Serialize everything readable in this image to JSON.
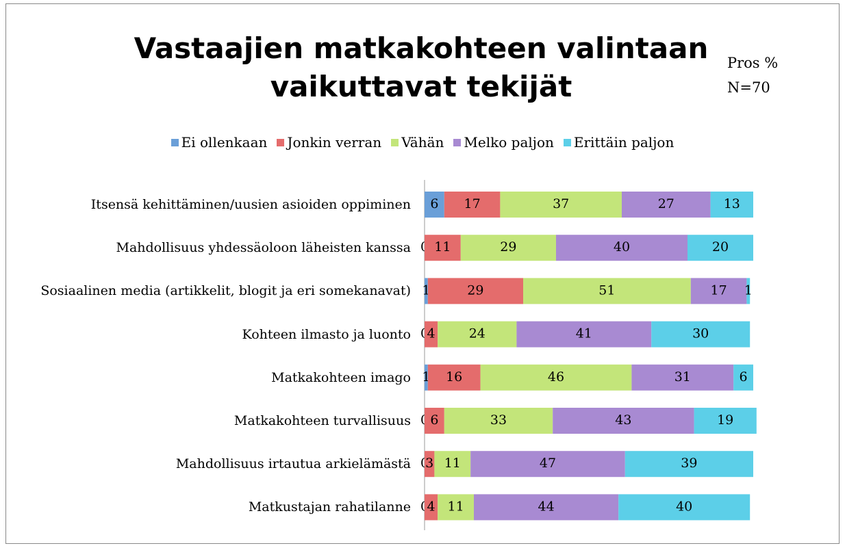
{
  "chart_data": {
    "type": "bar",
    "orientation": "horizontal",
    "stacked": true,
    "title": [
      "Vastaajien matkakohteen valintaan",
      "vaikuttavat tekijät"
    ],
    "annotations": [
      "Pros %",
      "N=70"
    ],
    "categories": [
      "Itsensä kehittäminen/uusien asioiden oppiminen",
      "Mahdollisuus yhdessäoloon läheisten kanssa",
      "Sosiaalinen media (artikkelit, blogit ja eri somekanavat)",
      "Kohteen ilmasto ja luonto",
      "Matkakohteen imago",
      "Matkakohteen turvallisuus",
      "Mahdollisuus irtautua arkielämästä",
      "Matkustajan rahatilanne"
    ],
    "series": [
      {
        "name": "Ei ollenkaan",
        "color": "#6a9fd8",
        "values": [
          6,
          0,
          1,
          0,
          1,
          0,
          0,
          0
        ]
      },
      {
        "name": "Jonkin verran",
        "color": "#e46c6c",
        "values": [
          17,
          11,
          29,
          4,
          16,
          6,
          3,
          4
        ]
      },
      {
        "name": "Vähän",
        "color": "#c3e57a",
        "values": [
          37,
          29,
          51,
          24,
          46,
          33,
          11,
          11
        ]
      },
      {
        "name": "Melko paljon",
        "color": "#a88ad2",
        "values": [
          27,
          40,
          17,
          41,
          31,
          43,
          47,
          44
        ]
      },
      {
        "name": "Erittäin paljon",
        "color": "#5ccfe8",
        "values": [
          13,
          20,
          1,
          30,
          6,
          19,
          39,
          40
        ]
      }
    ],
    "xlim": [
      0,
      100
    ],
    "legend": "top"
  }
}
